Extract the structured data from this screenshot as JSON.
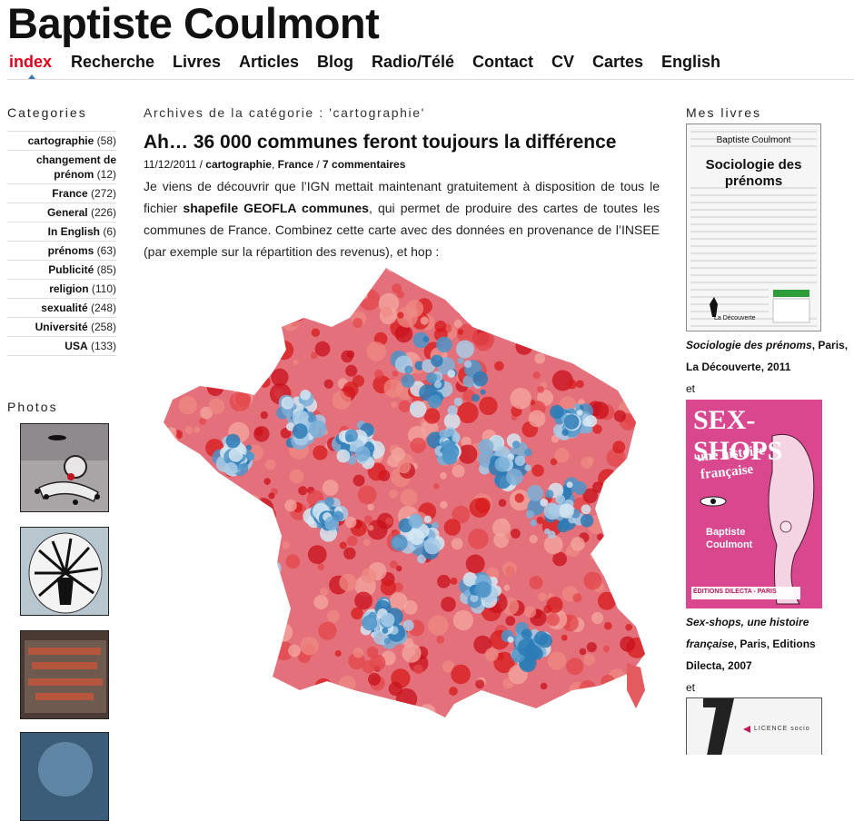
{
  "site": {
    "title": "Baptiste Coulmont"
  },
  "nav": {
    "items": [
      "index",
      "Recherche",
      "Livres",
      "Articles",
      "Blog",
      "Radio/Télé",
      "Contact",
      "CV",
      "Cartes",
      "English"
    ],
    "active": "index",
    "active_color": "#e3001b"
  },
  "sidebar": {
    "categories_heading": "Categories",
    "categories": [
      {
        "name": "cartographie",
        "count": "(58)"
      },
      {
        "name": "changement de prénom",
        "count": "(12)"
      },
      {
        "name": "France",
        "count": "(272)"
      },
      {
        "name": "General",
        "count": "(226)"
      },
      {
        "name": "In English",
        "count": "(6)"
      },
      {
        "name": "prénoms",
        "count": "(63)"
      },
      {
        "name": "Publicité",
        "count": "(85)"
      },
      {
        "name": "religion",
        "count": "(110)"
      },
      {
        "name": "sexualité",
        "count": "(248)"
      },
      {
        "name": "Université",
        "count": "(258)"
      },
      {
        "name": "USA",
        "count": "(133)"
      }
    ],
    "photos_heading": "Photos"
  },
  "main": {
    "archive_heading": "Archives de la catégorie : 'cartographie'",
    "post": {
      "title": "Ah… 36 000 communes feront toujours la différence",
      "date": "11/12/2011",
      "sep": " / ",
      "category_1": "cartographie",
      "category_2": "France",
      "comments": "7 commentaires",
      "body_1": "Je viens de découvrir que l’IGN mettait maintenant gratuitement à disposition de tous le fichier ",
      "body_link": "shapefile GEOFLA communes",
      "body_2": ", qui permet de produire des cartes de toutes les communes de France. Combinez cette carte avec des données en provenance de l’INSEE (par exemple sur la répartition des revenus), et hop :"
    }
  },
  "books": {
    "heading": "Mes livres",
    "book1": {
      "cover_author": "Baptiste Coulmont",
      "cover_title": "Sociologie des prénoms",
      "cover_publisher": "La Découverte",
      "title": "Sociologie des prénoms",
      "details": ", Paris, La Découverte, 2011"
    },
    "and_1": "et",
    "book2": {
      "cover_line_1": "Sex-shops",
      "cover_line_2": "une histoire",
      "cover_line_3": "française",
      "cover_author_1": "Baptiste",
      "cover_author_2": "Coulmont",
      "cover_publisher": "ÉDITIONS DILECTA - PARIS",
      "title": "Sex-shops, une histoire française",
      "details": ", Paris, Editions Dilecta, 2007"
    },
    "and_2": "et",
    "book3": {
      "cover_text": "LICENCE socio"
    }
  },
  "colors": {
    "map_red": "#d7191c",
    "map_blue": "#2c7bb6",
    "sexshops_pink": "#d9488f"
  }
}
